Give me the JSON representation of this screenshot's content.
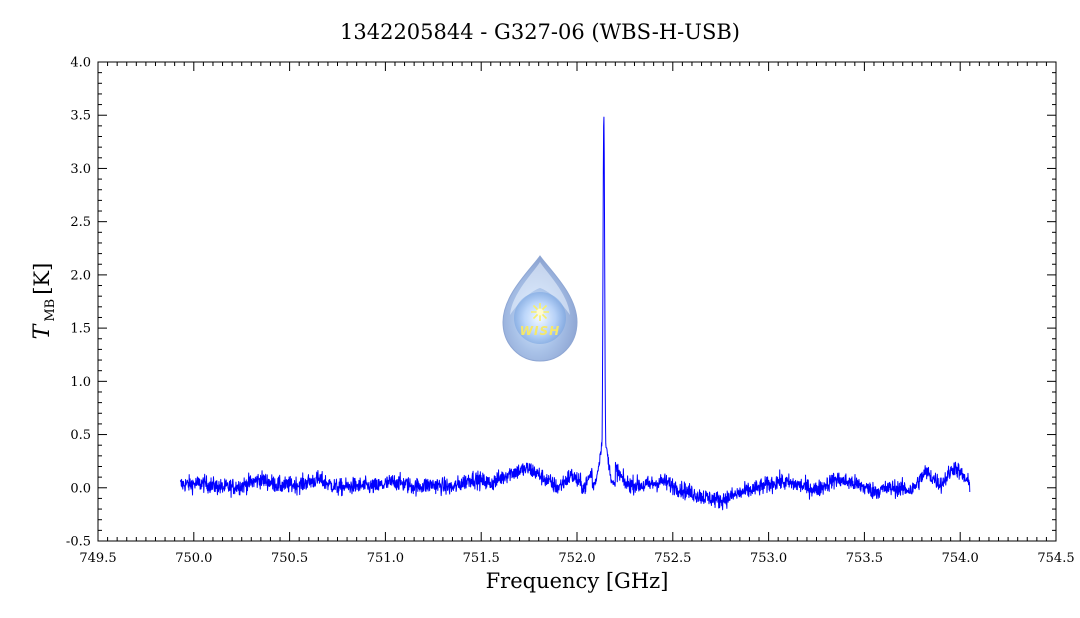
{
  "chart_data": {
    "type": "line",
    "title": "1342205844 - G327-06 (WBS-H-USB)",
    "xlabel": "Frequency [GHz]",
    "ylabel": {
      "symbol": "T",
      "subscript": "MB",
      "unit": "[K]"
    },
    "xlim": [
      749.5,
      754.5
    ],
    "ylim": [
      -0.5,
      4.0
    ],
    "x_ticks": [
      "749.5",
      "750.0",
      "750.5",
      "751.0",
      "751.5",
      "752.0",
      "752.5",
      "753.0",
      "753.5",
      "754.0",
      "754.5"
    ],
    "y_ticks": [
      "-0.5",
      "0.0",
      "0.5",
      "1.0",
      "1.5",
      "2.0",
      "2.5",
      "3.0",
      "3.5",
      "4.0"
    ],
    "grid": false,
    "series": [
      {
        "color": "#0000ff",
        "x_range": [
          749.93,
          754.05
        ],
        "baseline_points": [
          [
            749.93,
            0.03
          ],
          [
            750.05,
            0.04
          ],
          [
            750.15,
            0.0
          ],
          [
            750.25,
            0.02
          ],
          [
            750.35,
            0.08
          ],
          [
            750.45,
            0.02
          ],
          [
            750.55,
            0.03
          ],
          [
            750.65,
            0.08
          ],
          [
            750.75,
            0.0
          ],
          [
            750.85,
            0.02
          ],
          [
            750.95,
            0.01
          ],
          [
            751.05,
            0.06
          ],
          [
            751.15,
            0.01
          ],
          [
            751.25,
            0.03
          ],
          [
            751.35,
            0.0
          ],
          [
            751.45,
            0.09
          ],
          [
            751.55,
            0.04
          ],
          [
            751.65,
            0.14
          ],
          [
            751.75,
            0.18
          ],
          [
            751.82,
            0.1
          ],
          [
            751.9,
            0.0
          ],
          [
            751.97,
            0.12
          ],
          [
            752.04,
            0.0
          ],
          [
            752.1,
            0.25
          ],
          [
            752.14,
            3.5
          ],
          [
            752.18,
            0.25
          ],
          [
            752.25,
            0.04
          ],
          [
            752.35,
            0.02
          ],
          [
            752.45,
            0.06
          ],
          [
            752.55,
            -0.02
          ],
          [
            752.65,
            -0.08
          ],
          [
            752.75,
            -0.12
          ],
          [
            752.85,
            -0.05
          ],
          [
            752.95,
            0.0
          ],
          [
            753.05,
            0.06
          ],
          [
            753.15,
            0.03
          ],
          [
            753.25,
            -0.02
          ],
          [
            753.35,
            0.08
          ],
          [
            753.45,
            0.04
          ],
          [
            753.55,
            -0.03
          ],
          [
            753.65,
            0.0
          ],
          [
            753.75,
            -0.02
          ],
          [
            753.82,
            0.15
          ],
          [
            753.9,
            0.03
          ],
          [
            753.97,
            0.2
          ],
          [
            754.05,
            0.03
          ]
        ],
        "peak": {
          "x": 752.14,
          "y": 3.5
        }
      }
    ],
    "logo": {
      "text": "WISH"
    }
  }
}
